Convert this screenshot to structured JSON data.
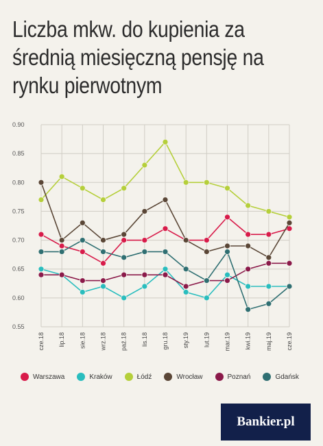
{
  "title": "Liczba mkw. do kupienia za\nśrednią miesięczną pensję na\nrynku pierwotnym",
  "logo_text": "Bankier.pl",
  "colors": {
    "background": "#f4f2ec",
    "grid": "#cfccc4",
    "logo_bg": "#12204a"
  },
  "chart_data": {
    "type": "line",
    "title": "Liczba mkw. do kupienia za średnią miesięczną pensję na rynku pierwotnym",
    "xlabel": "",
    "ylabel": "",
    "ylim": [
      0.55,
      0.9
    ],
    "yticks": [
      "0.55",
      "0.60",
      "0.65",
      "0.70",
      "0.75",
      "0.80",
      "0.85",
      "0.90"
    ],
    "grid": true,
    "legend_position": "bottom",
    "categories": [
      "cze.18",
      "lip.18",
      "sie.18",
      "wrz.18",
      "paź.18",
      "lis.18",
      "gru.18",
      "sty.19",
      "lut.19",
      "mar.19",
      "kwi.19",
      "maj.19",
      "cze.19"
    ],
    "series": [
      {
        "name": "Warszawa",
        "color": "#d81b4a",
        "values": [
          0.71,
          0.69,
          0.68,
          0.66,
          0.7,
          0.7,
          0.72,
          0.7,
          0.7,
          0.74,
          0.71,
          0.71,
          0.72
        ]
      },
      {
        "name": "Kraków",
        "color": "#29bdbe",
        "values": [
          0.65,
          0.64,
          0.61,
          0.62,
          0.6,
          0.62,
          0.65,
          0.61,
          0.6,
          0.64,
          0.62,
          0.62,
          0.62
        ]
      },
      {
        "name": "Łódź",
        "color": "#b5cf3a",
        "values": [
          0.77,
          0.81,
          0.79,
          0.77,
          0.79,
          0.83,
          0.87,
          0.8,
          0.8,
          0.79,
          0.76,
          0.75,
          0.74
        ]
      },
      {
        "name": "Wrocław",
        "color": "#5a4636",
        "values": [
          0.8,
          0.7,
          0.73,
          0.7,
          0.71,
          0.75,
          0.77,
          0.7,
          0.68,
          0.69,
          0.69,
          0.67,
          0.73
        ]
      },
      {
        "name": "Poznań",
        "color": "#8b1a4a",
        "values": [
          0.64,
          0.64,
          0.63,
          0.63,
          0.64,
          0.64,
          0.64,
          0.62,
          0.63,
          0.63,
          0.65,
          0.66,
          0.66
        ]
      },
      {
        "name": "Gdańsk",
        "color": "#2f6f72",
        "values": [
          0.68,
          0.68,
          0.7,
          0.68,
          0.67,
          0.68,
          0.68,
          0.65,
          0.63,
          0.68,
          0.58,
          0.59,
          0.62
        ]
      }
    ]
  }
}
